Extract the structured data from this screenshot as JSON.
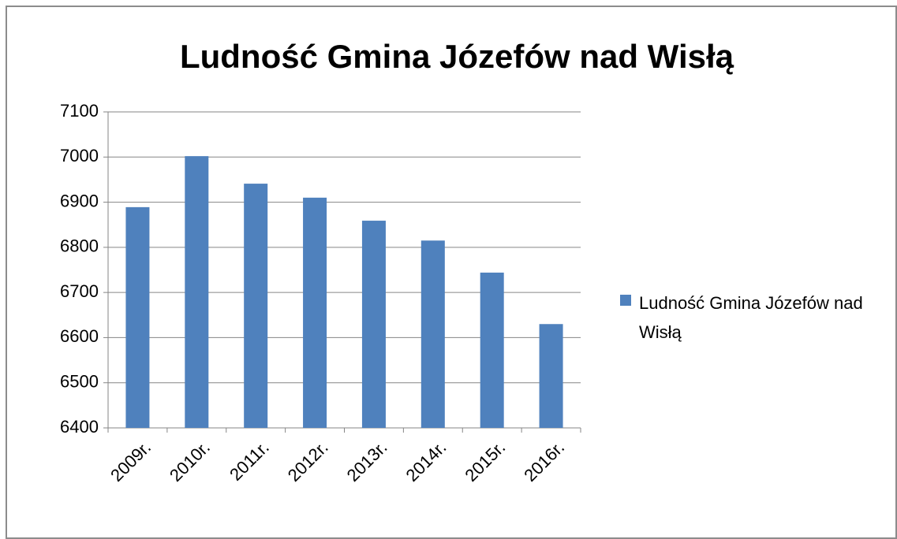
{
  "chart_data": {
    "type": "bar",
    "title": "Ludność Gmina Józefów nad Wisłą",
    "categories": [
      "2009r.",
      "2010r.",
      "2011r.",
      "2012r.",
      "2013r.",
      "2014r.",
      "2015r.",
      "2016r."
    ],
    "series": [
      {
        "name": "Ludność Gmina Józefów nad Wisłą",
        "color": "#4f81bd",
        "values": [
          6889,
          7002,
          6941,
          6910,
          6859,
          6815,
          6744,
          6630
        ]
      }
    ],
    "ylim": [
      6400,
      7100
    ],
    "yticks": [
      6400,
      6500,
      6600,
      6700,
      6800,
      6900,
      7000,
      7100
    ],
    "grid": true,
    "legend": "right"
  }
}
